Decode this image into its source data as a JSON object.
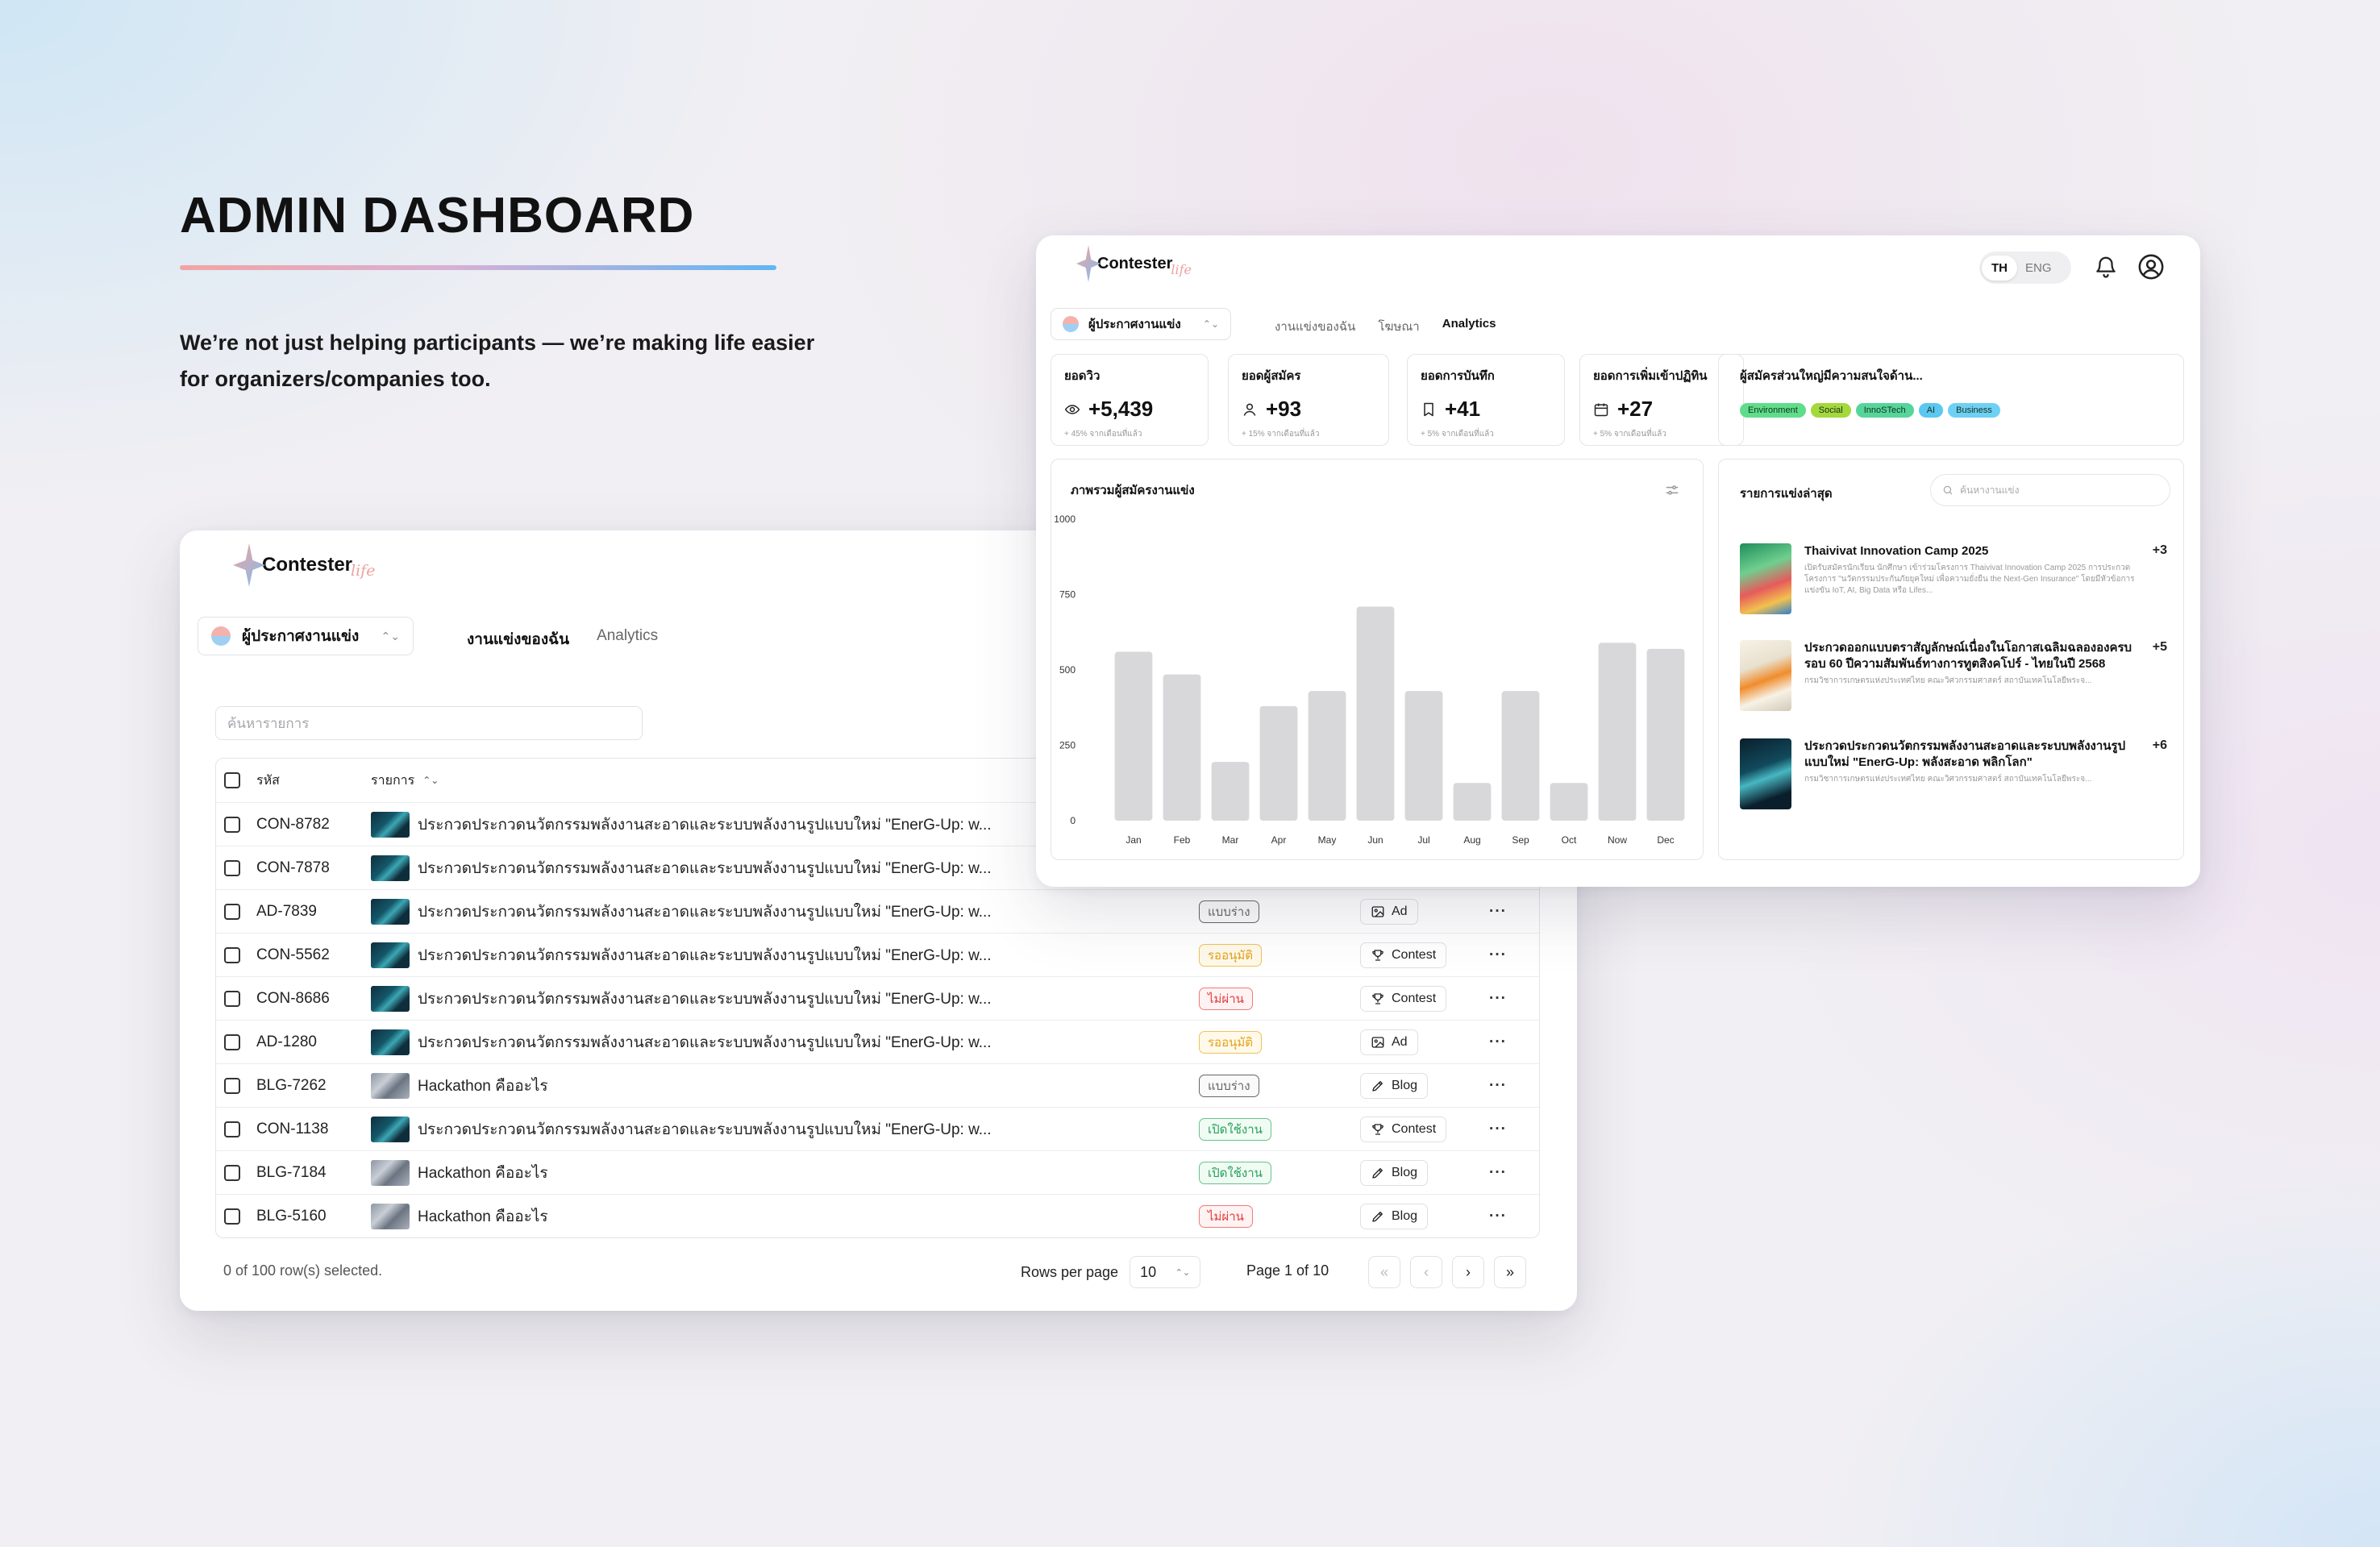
{
  "hero": {
    "title": "ADMIN DASHBOARD",
    "tagline_1": "We’re not just helping participants — we’re making life easier",
    "tagline_2": "for organizers/companies too."
  },
  "brand": {
    "name": "Contester",
    "suffix": "life"
  },
  "table_window": {
    "role_select": "ผู้ประกาศงานแข่ง",
    "tabs": [
      "งานแข่งของฉัน",
      "Analytics"
    ],
    "search_placeholder": "ค้นหารายการ",
    "columns": {
      "code": "รหัส",
      "title": "รายการ"
    },
    "rows": [
      {
        "code": "CON-8782",
        "title": "ประกวดประกวดนวัตกรรมพลังงานสะอาดและระบบพลังงานรูปแบบใหม่ \"EnerG-Up: w...",
        "thumb": "energy",
        "status": "",
        "status_kind": "",
        "type": "",
        "type_icon": ""
      },
      {
        "code": "CON-7878",
        "title": "ประกวดประกวดนวัตกรรมพลังงานสะอาดและระบบพลังงานรูปแบบใหม่ \"EnerG-Up: w...",
        "thumb": "energy",
        "status": "",
        "status_kind": "",
        "type": "",
        "type_icon": ""
      },
      {
        "code": "AD-7839",
        "title": "ประกวดประกวดนวัตกรรมพลังงานสะอาดและระบบพลังงานรูปแบบใหม่ \"EnerG-Up: w...",
        "thumb": "energy",
        "status": "แบบร่าง",
        "status_kind": "draft",
        "type": "Ad",
        "type_icon": "image-icon"
      },
      {
        "code": "CON-5562",
        "title": "ประกวดประกวดนวัตกรรมพลังงานสะอาดและระบบพลังงานรูปแบบใหม่ \"EnerG-Up: w...",
        "thumb": "energy",
        "status": "รออนุมัติ",
        "status_kind": "pending",
        "type": "Contest",
        "type_icon": "trophy-icon"
      },
      {
        "code": "CON-8686",
        "title": "ประกวดประกวดนวัตกรรมพลังงานสะอาดและระบบพลังงานรูปแบบใหม่ \"EnerG-Up: w...",
        "thumb": "energy",
        "status": "ไม่ผ่าน",
        "status_kind": "fail",
        "type": "Contest",
        "type_icon": "trophy-icon"
      },
      {
        "code": "AD-1280",
        "title": "ประกวดประกวดนวัตกรรมพลังงานสะอาดและระบบพลังงานรูปแบบใหม่ \"EnerG-Up: w...",
        "thumb": "energy",
        "status": "รออนุมัติ",
        "status_kind": "pending",
        "type": "Ad",
        "type_icon": "image-icon"
      },
      {
        "code": "BLG-7262",
        "title": "Hackathon คืออะไร",
        "thumb": "blog",
        "status": "แบบร่าง",
        "status_kind": "draft",
        "type": "Blog",
        "type_icon": "pen-icon"
      },
      {
        "code": "CON-1138",
        "title": "ประกวดประกวดนวัตกรรมพลังงานสะอาดและระบบพลังงานรูปแบบใหม่ \"EnerG-Up: w...",
        "thumb": "energy",
        "status": "เปิดใช้งาน",
        "status_kind": "open",
        "type": "Contest",
        "type_icon": "trophy-icon"
      },
      {
        "code": "BLG-7184",
        "title": "Hackathon คืออะไร",
        "thumb": "blog",
        "status": "เปิดใช้งาน",
        "status_kind": "open",
        "type": "Blog",
        "type_icon": "pen-icon"
      },
      {
        "code": "BLG-5160",
        "title": "Hackathon คืออะไร",
        "thumb": "blog",
        "status": "ไม่ผ่าน",
        "status_kind": "fail",
        "type": "Blog",
        "type_icon": "pen-icon"
      }
    ],
    "selected_text": "0 of 100 row(s) selected.",
    "rows_per_page_label": "Rows per page",
    "rows_per_page_value": "10",
    "page_text": "Page 1 of 10"
  },
  "analytics_window": {
    "lang": {
      "active": "TH",
      "inactive": "ENG"
    },
    "role_select": "ผู้ประกาศงานแข่ง",
    "tabs": [
      "งานแข่งของฉัน",
      "โฆษณา",
      "Analytics"
    ],
    "kpis": [
      {
        "title": "ยอดวิว",
        "value": "+5,439",
        "sub": "+ 45% จากเดือนที่แล้ว",
        "icon": "eye-icon"
      },
      {
        "title": "ยอดผู้สมัคร",
        "value": "+93",
        "sub": "+ 15% จากเดือนที่แล้ว",
        "icon": "user-icon"
      },
      {
        "title": "ยอดการบันทึก",
        "value": "+41",
        "sub": "+ 5% จากเดือนที่แล้ว",
        "icon": "bookmark-icon"
      },
      {
        "title": "ยอดการเพิ่มเข้าปฏิทิน",
        "value": "+27",
        "sub": "+ 5% จากเดือนที่แล้ว",
        "icon": "calendar-icon"
      }
    ],
    "interest": {
      "title": "ผู้สมัครส่วนใหญ่มีความสนใจด้าน...",
      "tags": [
        {
          "label": "Environment",
          "color": "#5fdd8a"
        },
        {
          "label": "Social",
          "color": "#a4d83c"
        },
        {
          "label": "InnoSTech",
          "color": "#56d59a"
        },
        {
          "label": "AI",
          "color": "#5cc7f0"
        },
        {
          "label": "Business",
          "color": "#6ed0f5"
        }
      ]
    },
    "chart_title": "ภาพรวมผู้สมัครงานแข่ง",
    "latest": {
      "title": "รายการแข่งล่าสุด",
      "search_placeholder": "ค้นหางานแข่ง",
      "items": [
        {
          "title": "Thaivivat Innovation Camp 2025",
          "desc": "เปิดรับสมัครนักเรียน นักศึกษา เข้าร่วมโครงการ Thaivivat Innovation Camp 2025 การประกวดโครงการ \"นวัตกรรมประกันภัยยุคใหม่ เพื่อความยั่งยืน the Next-Gen Insurance\" โดยมีหัวข้อการแข่งขัน IoT, AI, Big Data หรือ Lifes...",
          "plus": "+3"
        },
        {
          "title": "ประกวดออกแบบตราสัญลักษณ์เนื่องในโอกาสเฉลิมฉลององครบรอบ 60 ปีความสัมพันธ์ทางการทูตสิงคโปร์ - ไทยในปี 2568",
          "desc": "กรมวิชาการเกษตรแห่งประเทศไทย คณะวิศวกรรมศาสตร์ สถาบันเทคโนโลยีพระจ...",
          "plus": "+5"
        },
        {
          "title": "ประกวดประกวดนวัตกรรมพลังงานสะอาดและระบบพลังงานรูปแบบใหม่ \"EnerG-Up: พลังสะอาด พลิกโลก\"",
          "desc": "กรมวิชาการเกษตรแห่งประเทศไทย คณะวิศวกรรมศาสตร์ สถาบันเทคโนโลยีพระจ...",
          "plus": "+6"
        }
      ]
    }
  },
  "chart_data": {
    "type": "bar",
    "title": "ภาพรวมผู้สมัครงานแข่ง",
    "categories": [
      "Jan",
      "Feb",
      "Mar",
      "Apr",
      "May",
      "Jun",
      "Jul",
      "Aug",
      "Sep",
      "Oct",
      "Now",
      "Dec"
    ],
    "values": [
      560,
      485,
      195,
      380,
      430,
      710,
      430,
      125,
      430,
      125,
      590,
      570
    ],
    "yticks": [
      0,
      250,
      500,
      750,
      1000
    ],
    "ylim": [
      0,
      1000
    ],
    "bar_color": "#d8d8da",
    "grid": false,
    "xlabel": "",
    "ylabel": ""
  }
}
